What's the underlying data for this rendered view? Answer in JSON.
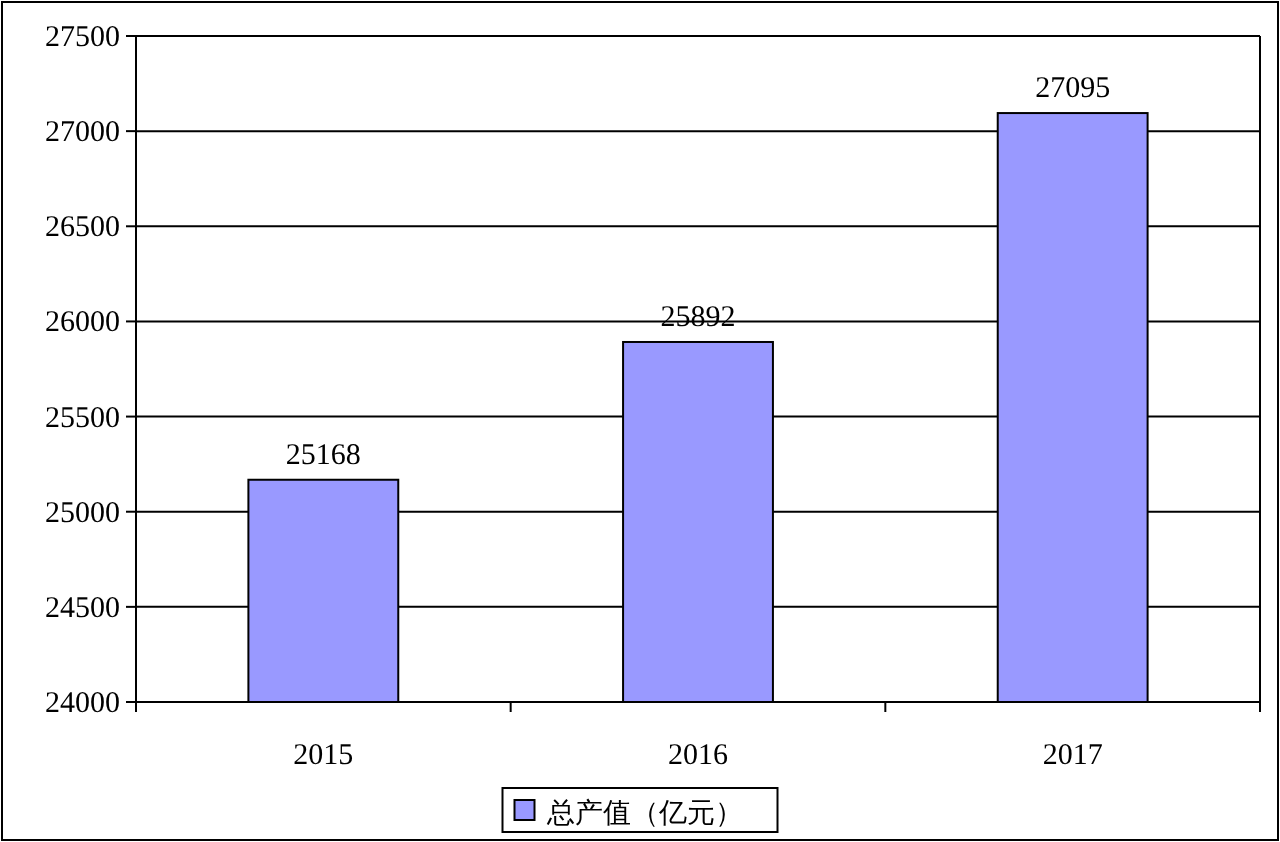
{
  "chart_data": {
    "type": "bar",
    "categories": [
      "2015",
      "2016",
      "2017"
    ],
    "series": [
      {
        "name": "总产值（亿元）",
        "color": "#9999ff",
        "values": [
          25168,
          25892,
          27095
        ]
      }
    ],
    "ylim": [
      24000,
      27500
    ],
    "yticks": [
      24000,
      24500,
      25000,
      25500,
      26000,
      26500,
      27000,
      27500
    ],
    "grid": "y",
    "legend": "bottom",
    "data_labels": true
  }
}
